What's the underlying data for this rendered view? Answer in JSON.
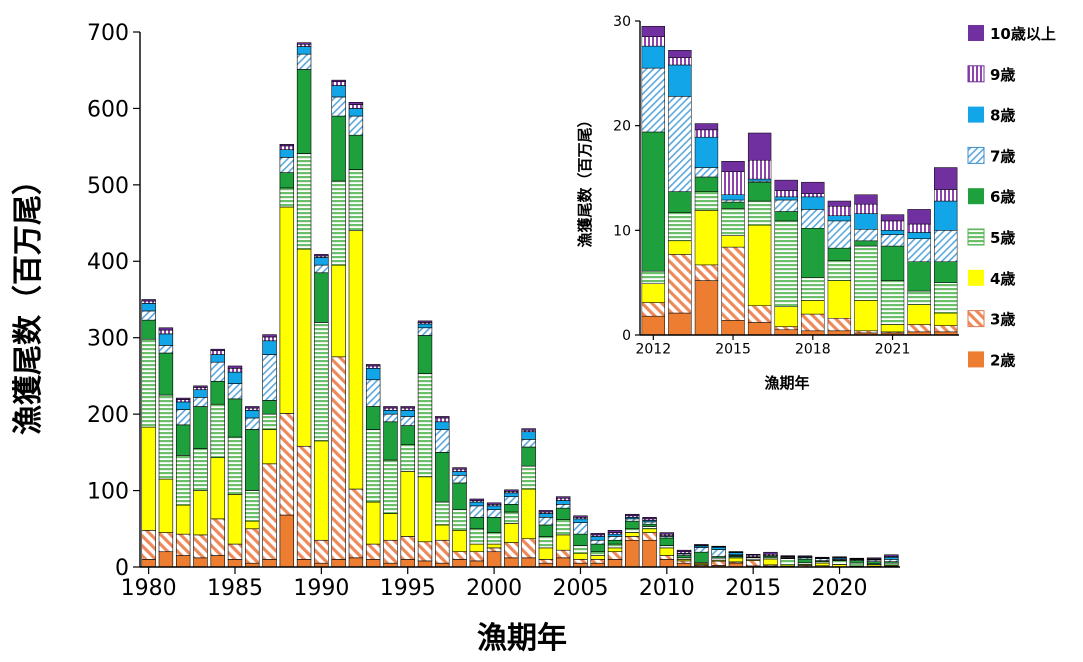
{
  "chart_data": [
    {
      "type": "bar",
      "stacked": true,
      "xlabel": "漁期年",
      "ylabel": "漁獲尾数（百万尾）",
      "ylim": [
        0,
        700
      ],
      "yticks": [
        "0",
        "100",
        "200",
        "300",
        "400",
        "500",
        "600",
        "700"
      ],
      "xticks": [
        "1980",
        "1985",
        "1990",
        "1995",
        "2000",
        "2005",
        "2010",
        "2015",
        "2020"
      ],
      "categories": [
        1980,
        1981,
        1982,
        1983,
        1984,
        1985,
        1986,
        1987,
        1988,
        1989,
        1990,
        1991,
        1992,
        1993,
        1994,
        1995,
        1996,
        1997,
        1998,
        1999,
        2000,
        2001,
        2002,
        2003,
        2004,
        2005,
        2006,
        2007,
        2008,
        2009,
        2010,
        2011,
        2012,
        2013,
        2014,
        2015,
        2016,
        2017,
        2018,
        2019,
        2020,
        2021,
        2022,
        2023
      ],
      "series": [
        {
          "name": "2歳",
          "values": [
            10,
            20,
            15,
            12,
            15,
            10,
            5,
            10,
            68,
            10,
            5,
            10,
            12,
            10,
            5,
            10,
            8,
            5,
            10,
            8,
            20,
            12,
            12,
            5,
            12,
            5,
            5,
            10,
            35,
            35,
            10,
            5,
            1.8,
            2.1,
            5.2,
            1.4,
            1.2,
            0.5,
            0.4,
            0.4,
            0.2,
            0.2,
            0.3,
            0.3
          ]
        },
        {
          "name": "3歳",
          "values": [
            38,
            25,
            28,
            30,
            48,
            20,
            45,
            125,
            133,
            148,
            30,
            265,
            90,
            20,
            30,
            30,
            25,
            30,
            10,
            12,
            5,
            20,
            25,
            5,
            10,
            5,
            5,
            10,
            5,
            10,
            5,
            3,
            1.3,
            5.6,
            1.5,
            7.0,
            1.6,
            0.3,
            1.6,
            1.2,
            0.2,
            0.1,
            0.7,
            0.6
          ]
        },
        {
          "name": "4歳",
          "values": [
            135,
            70,
            38,
            58,
            80,
            65,
            10,
            45,
            270,
            258,
            130,
            120,
            338,
            55,
            35,
            85,
            85,
            20,
            28,
            10,
            5,
            25,
            65,
            15,
            20,
            8,
            5,
            5,
            5,
            5,
            10,
            2,
            1.8,
            1.3,
            5.2,
            1.1,
            7.7,
            1.9,
            1.3,
            3.6,
            2.9,
            0.7,
            1.9,
            1.2
          ]
        },
        {
          "name": "5歳",
          "values": [
            115,
            110,
            65,
            55,
            70,
            75,
            40,
            20,
            25,
            125,
            155,
            110,
            80,
            95,
            70,
            35,
            135,
            30,
            27,
            20,
            15,
            15,
            30,
            15,
            20,
            10,
            5,
            5,
            5,
            3,
            3,
            2,
            1.2,
            2.7,
            1.8,
            2.6,
            2.3,
            8.2,
            2.2,
            1.9,
            5.2,
            4.2,
            1.3,
            2.9
          ]
        },
        {
          "name": "6歳",
          "values": [
            25,
            55,
            40,
            55,
            30,
            50,
            80,
            18,
            20,
            110,
            65,
            85,
            45,
            30,
            50,
            25,
            50,
            65,
            35,
            15,
            20,
            10,
            25,
            15,
            15,
            15,
            10,
            5,
            10,
            3,
            10,
            3,
            13.3,
            2.0,
            1.4,
            0.6,
            1.8,
            0.9,
            4.7,
            1.2,
            0.5,
            3.3,
            2.8,
            2.0
          ]
        },
        {
          "name": "7歳",
          "values": [
            12,
            10,
            20,
            12,
            25,
            20,
            15,
            60,
            20,
            20,
            10,
            25,
            25,
            35,
            10,
            12,
            10,
            30,
            10,
            15,
            10,
            10,
            10,
            10,
            5,
            15,
            5,
            5,
            3,
            3,
            2,
            2,
            6.1,
            9.1,
            0.9,
            0.2,
            0.1,
            1.1,
            1.8,
            2.6,
            1.1,
            1.1,
            2.2,
            3.0
          ]
        },
        {
          "name": "8歳",
          "values": [
            10,
            15,
            10,
            10,
            10,
            15,
            10,
            18,
            10,
            10,
            10,
            15,
            10,
            15,
            5,
            8,
            5,
            10,
            5,
            5,
            5,
            5,
            10,
            5,
            5,
            5,
            5,
            3,
            2,
            2,
            1,
            1,
            2.1,
            3.0,
            2.9,
            0.5,
            0.2,
            0.3,
            1.2,
            0.5,
            1.5,
            0.4,
            0.6,
            2.8
          ]
        },
        {
          "name": "9歳",
          "values": [
            3,
            5,
            3,
            3,
            5,
            5,
            3,
            5,
            5,
            3,
            2,
            5,
            5,
            3,
            3,
            3,
            2,
            5,
            3,
            2,
            2,
            2,
            2,
            2,
            3,
            2,
            2,
            2,
            2,
            2,
            2,
            2,
            0.9,
            0.7,
            0.7,
            2.2,
            1.8,
            0.6,
            0.3,
            0.9,
            0.9,
            0.9,
            0.8,
            1.1
          ]
        },
        {
          "name": "10歳以上",
          "values": [
            2,
            3,
            2,
            2,
            2,
            3,
            2,
            3,
            2,
            2,
            2,
            2,
            3,
            2,
            2,
            2,
            2,
            2,
            2,
            2,
            2,
            2,
            2,
            2,
            2,
            2,
            2,
            3,
            2,
            2,
            2,
            2,
            1.0,
            0.7,
            0.6,
            1.0,
            2.6,
            1.0,
            1.1,
            0.5,
            0.9,
            0.6,
            1.4,
            2.1
          ]
        }
      ]
    },
    {
      "type": "bar",
      "stacked": true,
      "inset": true,
      "xlabel": "漁期年",
      "ylabel": "漁獲尾数（百万尾）",
      "ylim": [
        0,
        30
      ],
      "yticks": [
        "0",
        "10",
        "20",
        "30"
      ],
      "xticks": [
        "2012",
        "2015",
        "2018",
        "2021"
      ],
      "categories": [
        2012,
        2013,
        2014,
        2015,
        2016,
        2017,
        2018,
        2019,
        2020,
        2021,
        2022,
        2023
      ],
      "series": [
        {
          "name": "2歳",
          "values": [
            1.8,
            2.1,
            5.2,
            1.4,
            1.2,
            0.5,
            0.4,
            0.4,
            0.2,
            0.2,
            0.3,
            0.3
          ]
        },
        {
          "name": "3歳",
          "values": [
            1.3,
            5.6,
            1.5,
            7.0,
            1.6,
            0.3,
            1.6,
            1.2,
            0.2,
            0.1,
            0.7,
            0.6
          ]
        },
        {
          "name": "4歳",
          "values": [
            1.8,
            1.3,
            5.2,
            1.1,
            7.7,
            1.9,
            1.3,
            3.6,
            2.9,
            0.7,
            1.9,
            1.2
          ]
        },
        {
          "name": "5歳",
          "values": [
            1.2,
            2.7,
            1.8,
            2.6,
            2.3,
            8.2,
            2.2,
            1.9,
            5.2,
            4.2,
            1.3,
            2.9
          ]
        },
        {
          "name": "6歳",
          "values": [
            13.3,
            2.0,
            1.4,
            0.6,
            1.8,
            0.9,
            4.7,
            1.2,
            0.5,
            3.3,
            2.8,
            2.0
          ]
        },
        {
          "name": "7歳",
          "values": [
            6.1,
            9.1,
            0.9,
            0.2,
            0.1,
            1.1,
            1.8,
            2.6,
            1.1,
            1.1,
            2.2,
            3.0
          ]
        },
        {
          "name": "8歳",
          "values": [
            2.1,
            3.0,
            2.9,
            0.5,
            0.2,
            0.3,
            1.2,
            0.5,
            1.5,
            0.4,
            0.6,
            2.8
          ]
        },
        {
          "name": "9歳",
          "values": [
            0.9,
            0.7,
            0.7,
            2.2,
            1.8,
            0.6,
            0.3,
            0.9,
            0.9,
            0.9,
            0.8,
            1.1
          ]
        },
        {
          "name": "10歳以上",
          "values": [
            1.0,
            0.7,
            0.6,
            1.0,
            2.6,
            1.0,
            1.1,
            0.5,
            0.9,
            0.6,
            1.4,
            2.1
          ]
        }
      ]
    }
  ],
  "legend": {
    "placement": "right",
    "order_top_to_bottom": [
      "10歳以上",
      "9歳",
      "8歳",
      "7歳",
      "6歳",
      "5歳",
      "4歳",
      "3歳",
      "2歳"
    ]
  },
  "series_colors": {
    "2歳": "#ED7D31",
    "3歳": "#F4B183",
    "4歳": "#FFFF00",
    "5歳": "#70C070",
    "6歳": "#1EA03C",
    "7歳": "#5B9BD5",
    "8歳": "#12A5E8",
    "9歳": "#9B59C0",
    "10歳以上": "#7030A0"
  },
  "series_patterns": {
    "2歳": "solid",
    "3歳": "diagonal-stripes",
    "4歳": "solid",
    "5歳": "horizontal-stripes",
    "6歳": "solid",
    "7歳": "diagonal-stripes",
    "8歳": "solid",
    "9歳": "vertical-stripes",
    "10歳以上": "solid"
  }
}
